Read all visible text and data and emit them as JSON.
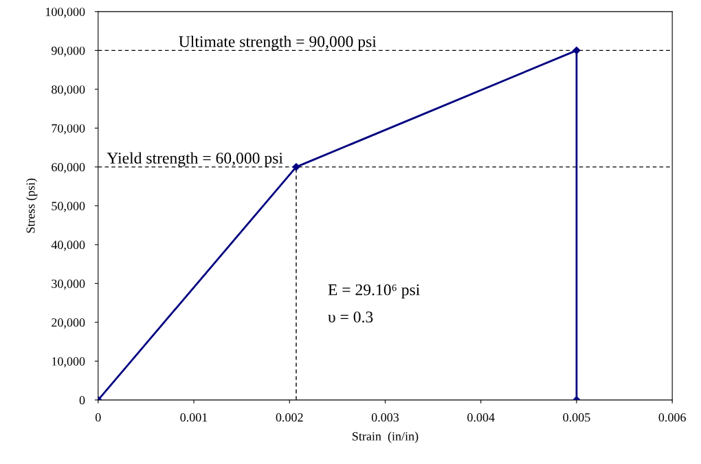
{
  "chart_data": {
    "type": "line",
    "xlabel": "Strain  (in/in)",
    "ylabel": "Stress (psi)",
    "series": [
      {
        "color": "#000080",
        "x": [
          0,
          0.00207,
          0.005,
          0.005
        ],
        "values": [
          0,
          60000,
          90000,
          0
        ],
        "marker": "diamond",
        "line_style": "solid"
      },
      {
        "color": "#000000",
        "x": [
          0.00207,
          0.00207
        ],
        "values": [
          0,
          60000
        ],
        "marker": "none",
        "line_style": "dashed"
      }
    ],
    "ref_lines": [
      {
        "axis": "y",
        "value": 90000,
        "label": "Ultimate strength = 90,000 psi",
        "color": "#000000",
        "line_style": "dashed"
      },
      {
        "axis": "y",
        "value": 60000,
        "label": "Yield strength = 60,000 psi",
        "color": "#000000",
        "line_style": "dashed"
      }
    ],
    "annotations": [
      "E = 29.10⁶ psi",
      "υ = 0.3"
    ],
    "xlim": [
      0,
      0.006
    ],
    "xticks": [
      0,
      0.001,
      0.002,
      0.003,
      0.004,
      0.005,
      0.006
    ],
    "ylim": [
      0,
      100000
    ],
    "yticks": [
      0,
      {
        "value": 10000,
        "label": "10,000"
      },
      {
        "value": 20000,
        "label": "20,000"
      },
      {
        "value": 30000,
        "label": "30,000"
      },
      {
        "value": 40000,
        "label": "40,000"
      },
      {
        "value": 50000,
        "label": "50,000"
      },
      {
        "value": 60000,
        "label": "60,000"
      },
      {
        "value": 70000,
        "label": "70,000"
      },
      {
        "value": 80000,
        "label": "80,000"
      },
      {
        "value": 90000,
        "label": "90,000"
      },
      {
        "value": 100000,
        "label": "100,000"
      }
    ],
    "grid": false,
    "legend": false
  }
}
